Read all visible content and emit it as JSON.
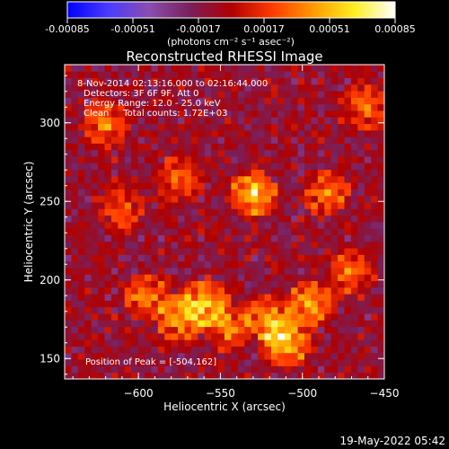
{
  "colorbar": {
    "tick_labels": [
      "-0.00085",
      "-0.00051",
      "-0.00017",
      "0.00017",
      "0.00051",
      "0.00085"
    ],
    "units": "(photons cm⁻² s⁻¹ asec⁻²)",
    "range": [
      -0.00085,
      0.00085
    ],
    "colors": [
      "#0000ff",
      "#4a3cff",
      "#8a4db0",
      "#7a1f5a",
      "#b00000",
      "#ff3a00",
      "#ff9a00",
      "#ffee20",
      "#ffffff"
    ]
  },
  "chart_data": {
    "type": "heatmap",
    "title": "Reconstructed RHESSI Image",
    "xlabel": "Heliocentric X (arcsec)",
    "ylabel": "Heliocentric Y (arcsec)",
    "xlim": [
      -645,
      -450
    ],
    "ylim": [
      137,
      337
    ],
    "xticks": [
      -600,
      -550,
      -500,
      -450
    ],
    "yticks": [
      150,
      200,
      250,
      300
    ],
    "xtick_labels": [
      "−600",
      "−550",
      "−500",
      "−450"
    ],
    "ytick_labels": [
      "150",
      "200",
      "250",
      "300"
    ],
    "annotations": [
      " 8-Nov-2014 02:13:16.000 to 02:16:44.000",
      "Detectors: 3F 6F 9F, Att 0",
      "Energy Range: 12.0 - 25.0 keV",
      "Clean     Total counts: 1.72E+03"
    ],
    "peak_label": "Position of Peak = [-504,162]",
    "peak": [
      -504,
      162
    ],
    "bright_sources": [
      {
        "x": -530,
        "y": 255,
        "level": 1.0
      },
      {
        "x": -510,
        "y": 160,
        "level": 0.9
      },
      {
        "x": -520,
        "y": 175,
        "level": 0.85
      },
      {
        "x": -560,
        "y": 185,
        "level": 0.9
      },
      {
        "x": -575,
        "y": 175,
        "level": 0.8
      },
      {
        "x": -545,
        "y": 170,
        "level": 0.75
      },
      {
        "x": -495,
        "y": 185,
        "level": 0.8
      },
      {
        "x": -595,
        "y": 190,
        "level": 0.7
      },
      {
        "x": -620,
        "y": 300,
        "level": 0.7
      },
      {
        "x": -460,
        "y": 310,
        "level": 0.6
      },
      {
        "x": -485,
        "y": 255,
        "level": 0.65
      },
      {
        "x": -575,
        "y": 265,
        "level": 0.55
      },
      {
        "x": -610,
        "y": 245,
        "level": 0.5
      },
      {
        "x": -470,
        "y": 205,
        "level": 0.6
      }
    ]
  },
  "footer": {
    "date": "19-May-2022 05:42"
  }
}
